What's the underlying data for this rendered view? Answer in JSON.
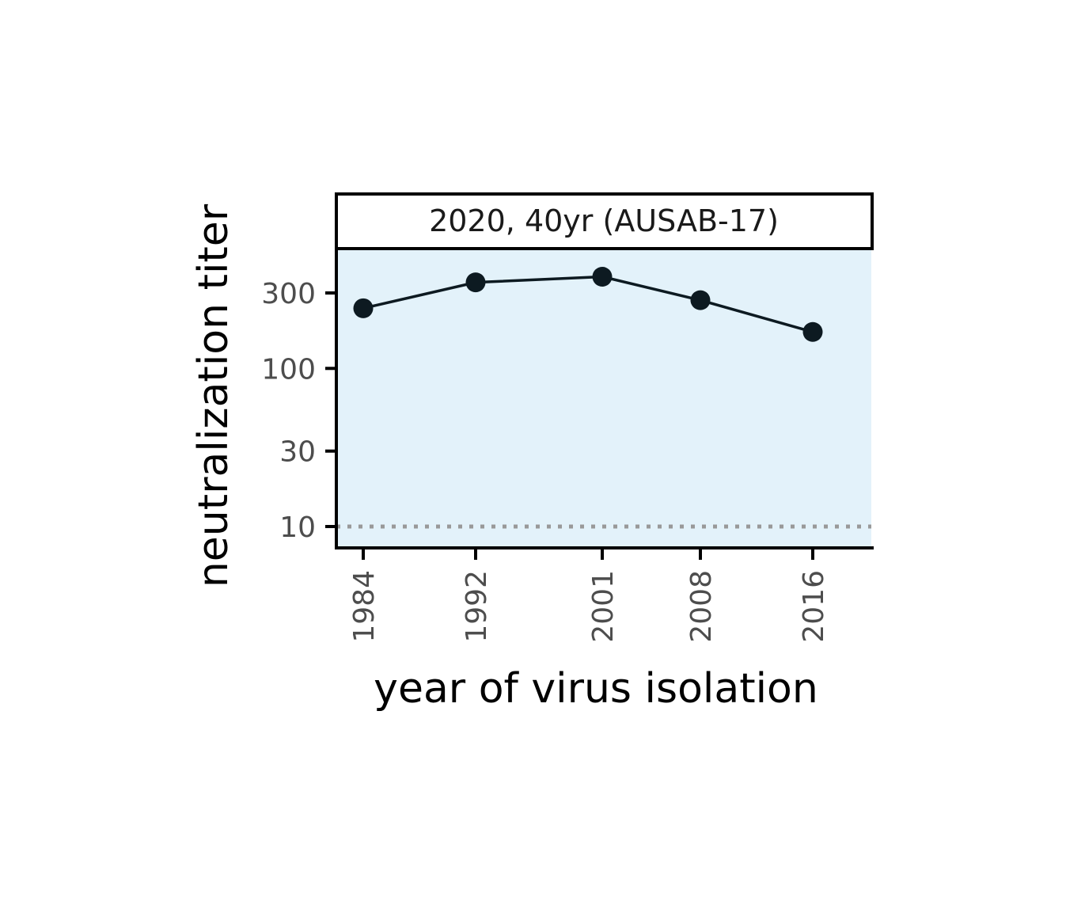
{
  "chart_data": {
    "type": "line",
    "facet_title": "2020, 40yr (AUSAB-17)",
    "xlabel": "year of virus isolation",
    "ylabel": "neutralization titer",
    "y_scale": "log",
    "x_ticks": [
      1984,
      1992,
      2001,
      2008,
      2016
    ],
    "y_ticks": [
      10,
      30,
      100,
      300
    ],
    "y_tick_labels": [
      "10",
      "30",
      "100",
      "300"
    ],
    "x": [
      1984,
      1992,
      2001,
      2008,
      2016
    ],
    "y": [
      240,
      350,
      380,
      270,
      170
    ],
    "detection_limit": 10,
    "grid": false,
    "colors": {
      "panel_background": "#e3f2fa",
      "series": "#0d1a21",
      "detection_limit_line": "#999999",
      "axis": "#000000"
    }
  }
}
